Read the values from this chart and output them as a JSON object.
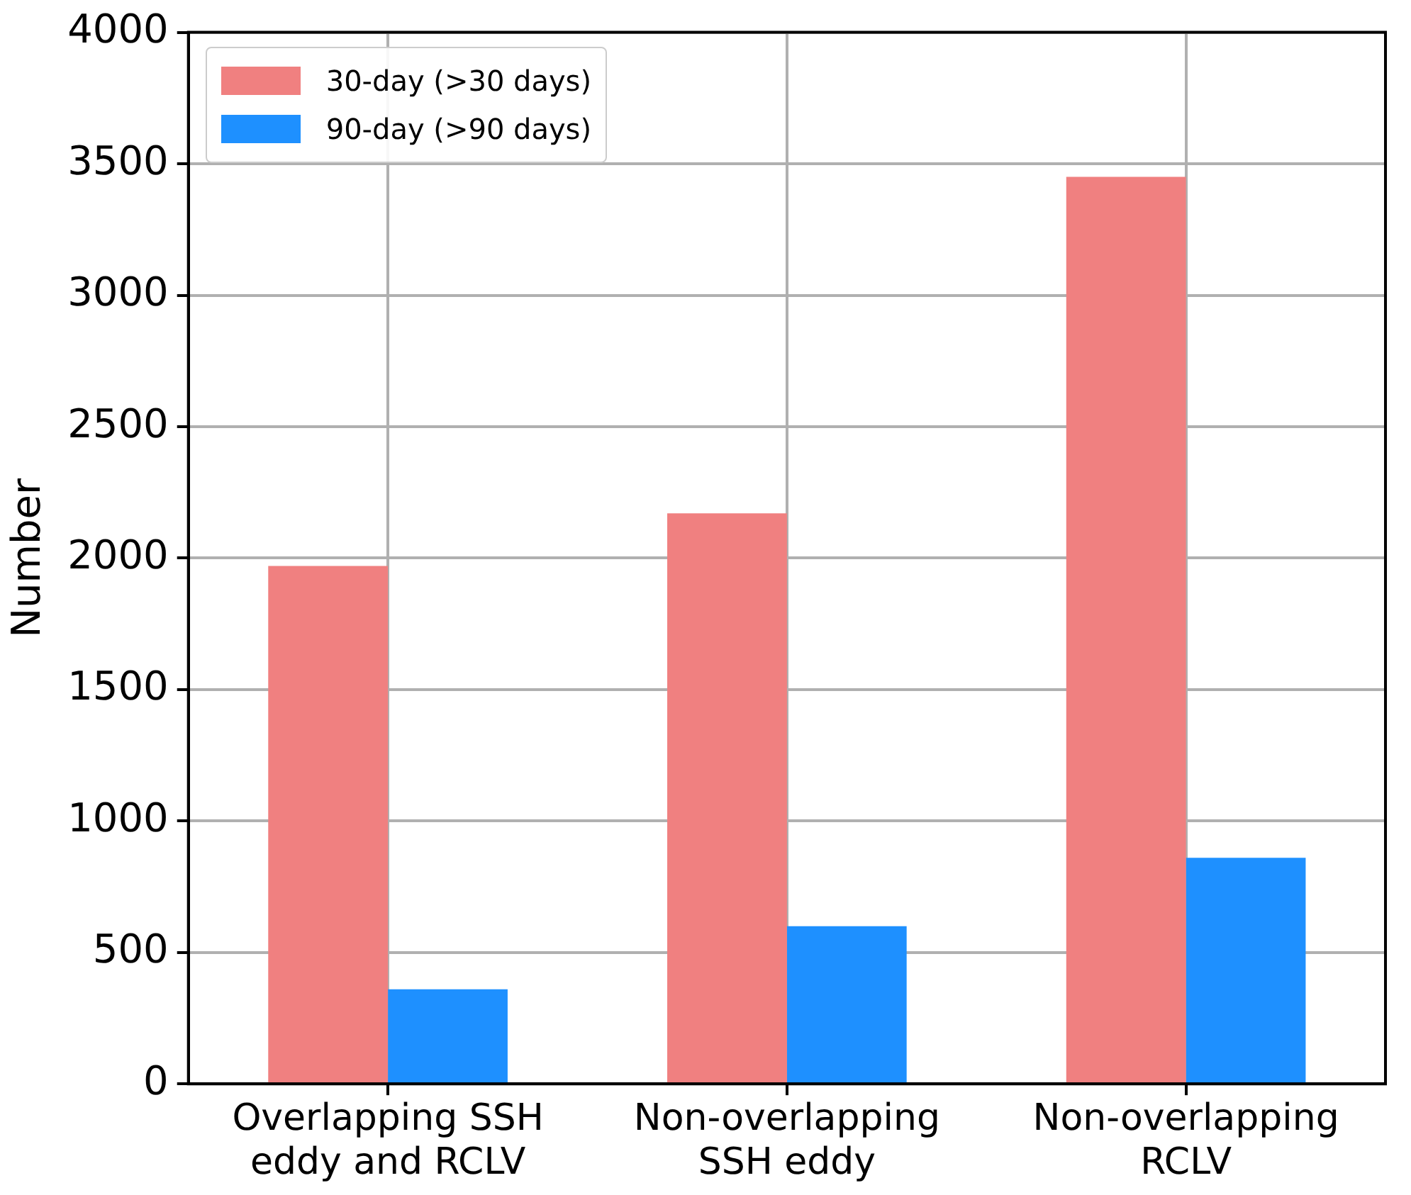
{
  "chart_data": {
    "type": "bar",
    "ylabel": "Number",
    "categories": [
      "Overlapping SSH eddy and RCLV",
      "Non-overlapping SSH eddy",
      "Non-overlapping RCLV"
    ],
    "series": [
      {
        "name": "30-day (>30 days)",
        "color": "#f08080",
        "values": [
          1970,
          2170,
          3450
        ]
      },
      {
        "name": "90-day (>90 days)",
        "color": "#1e90ff",
        "values": [
          360,
          600,
          860
        ]
      }
    ],
    "ylim": [
      0,
      4000
    ],
    "yticks": [
      0,
      500,
      1000,
      1500,
      2000,
      2500,
      3000,
      3500,
      4000
    ],
    "grid": true,
    "legend": "top left"
  }
}
